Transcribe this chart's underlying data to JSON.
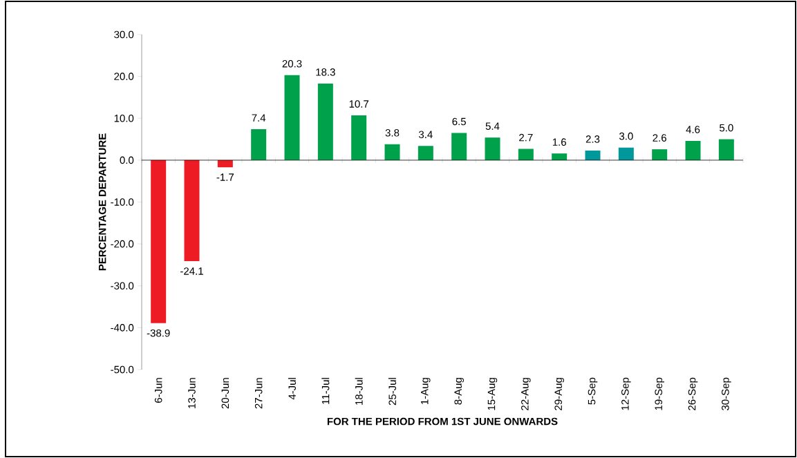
{
  "chart_data": {
    "type": "bar",
    "xlabel": "FOR THE PERIOD FROM 1ST JUNE ONWARDS",
    "ylabel": "PERCENTAGE DEPARTURE",
    "categories": [
      "6-Jun",
      "13-Jun",
      "20-Jun",
      "27-Jun",
      "4-Jul",
      "11-Jul",
      "18-Jul",
      "25-Jul",
      "1-Aug",
      "8-Aug",
      "15-Aug",
      "22-Aug",
      "29-Aug",
      "5-Sep",
      "12-Sep",
      "19-Sep",
      "26-Sep",
      "30-Sep"
    ],
    "values": [
      -38.9,
      -24.1,
      -1.7,
      7.4,
      20.3,
      18.3,
      10.7,
      3.8,
      3.4,
      6.5,
      5.4,
      2.7,
      1.6,
      2.3,
      3.0,
      2.6,
      4.6,
      5.0
    ],
    "value_labels": [
      "-38.9",
      "-24.1",
      "-1.7",
      "7.4",
      "20.3",
      "18.3",
      "10.7",
      "3.8",
      "3.4",
      "6.5",
      "5.4",
      "2.7",
      "1.6",
      "2.3",
      "3.0",
      "2.6",
      "4.6",
      "5.0"
    ],
    "colors": [
      "#ed1c24",
      "#ed1c24",
      "#ed1c24",
      "#00a14b",
      "#00a14b",
      "#00a14b",
      "#00a14b",
      "#00a14b",
      "#00a14b",
      "#00a14b",
      "#00a14b",
      "#00a14b",
      "#00a14b",
      "#00989a",
      "#00989a",
      "#00a14b",
      "#00a14b",
      "#00a14b"
    ],
    "ylim": [
      -50,
      30
    ],
    "yticks": [
      {
        "value": -50,
        "label": "-50.0"
      },
      {
        "value": -40,
        "label": "-40.0"
      },
      {
        "value": -30,
        "label": "-30.0"
      },
      {
        "value": -20,
        "label": "-20.0"
      },
      {
        "value": -10,
        "label": "-10.0"
      },
      {
        "value": 0,
        "label": "0.0"
      },
      {
        "value": 10,
        "label": "10.0"
      },
      {
        "value": 20,
        "label": "20.0"
      },
      {
        "value": 30,
        "label": "30.0"
      }
    ]
  }
}
